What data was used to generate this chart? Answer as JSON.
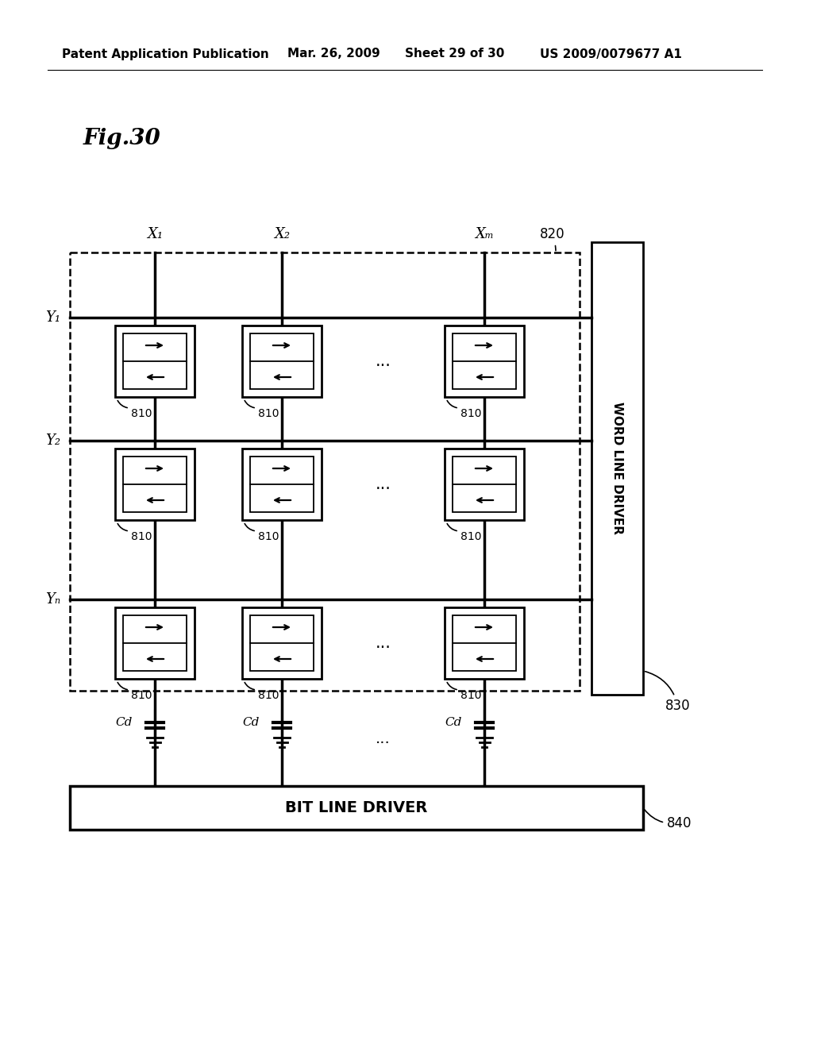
{
  "bg_color": "#ffffff",
  "title": "Fig.30",
  "header_text": "Patent Application Publication",
  "header_date": "Mar. 26, 2009",
  "header_sheet": "Sheet 29 of 30",
  "header_patent": "US 2009/0079677 A1",
  "label_820": "820",
  "label_830": "830",
  "label_840": "840",
  "label_810": "810",
  "label_wld": "WORD LINE DRIVER",
  "label_bld": "BIT LINE DRIVER",
  "label_cd": "Cd",
  "cols": [
    "X₁",
    "X₂",
    "Xₘ"
  ],
  "rows": [
    "Y₁",
    "Y₂",
    "Yₙ"
  ],
  "dots_h": "...",
  "dots_v": "⋮"
}
